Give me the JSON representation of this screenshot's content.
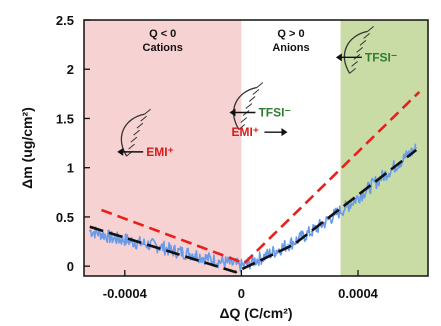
{
  "chart_data": {
    "type": "line",
    "xlabel": "ΔQ (C/cm²)",
    "ylabel": "Δm (ug/cm²)",
    "xlim": [
      -0.00054,
      0.00064
    ],
    "ylim": [
      -0.1,
      2.5
    ],
    "x_ticks": [
      -0.0004,
      0,
      0.0004
    ],
    "x_tick_labels": [
      "-0.0004",
      "0",
      "0.0004"
    ],
    "y_ticks": [
      0,
      0.5,
      1,
      1.5,
      2,
      2.5
    ],
    "y_tick_labels": [
      "0",
      "0.5",
      "1",
      "1.5",
      "2",
      "2.5"
    ],
    "regions": [
      {
        "x0": -0.00054,
        "x1": 0,
        "color": "#f7d2d2",
        "title": "Q < 0",
        "subtitle": "Cations"
      },
      {
        "x0": 0,
        "x1": 0.00034,
        "color": "#ffffff",
        "title": "Q > 0",
        "subtitle": "Anions"
      },
      {
        "x0": 0.00034,
        "x1": 0.00064,
        "color": "#c9dca6",
        "title": "",
        "subtitle": ""
      }
    ],
    "annotations": [
      {
        "text": "EMI⁺",
        "color": "#d91a1a",
        "x": -0.00033,
        "y": 1.12,
        "arrow": "left"
      },
      {
        "text": "TFSI⁻",
        "color": "#2f7d2f",
        "x": 5.5e-05,
        "y": 1.52,
        "arrow": "left"
      },
      {
        "text": "EMI⁺",
        "color": "#d91a1a",
        "x": 5.5e-05,
        "y": 1.32,
        "arrow": "right"
      },
      {
        "text": "TFSI⁻",
        "color": "#2f7d2f",
        "x": 0.00042,
        "y": 2.08,
        "arrow": "left"
      }
    ],
    "series": [
      {
        "style": "noisy-measured",
        "color": "#6a9be8",
        "x": [
          -0.00052,
          -0.00048,
          -0.00044,
          -0.0004,
          -0.00036,
          -0.00032,
          -0.00028,
          -0.00024,
          -0.0002,
          -0.00016,
          -0.00012,
          -8e-05,
          -4e-05,
          0,
          4e-05,
          8e-05,
          0.00012,
          0.00016,
          0.0002,
          0.00024,
          0.00028,
          0.00032,
          0.00036,
          0.0004,
          0.00044,
          0.00048,
          0.00052,
          0.00056,
          0.0006
        ],
        "values": [
          0.36,
          0.33,
          0.28,
          0.27,
          0.24,
          0.22,
          0.2,
          0.16,
          0.14,
          0.12,
          0.08,
          0.05,
          0.03,
          0.0,
          0.05,
          0.1,
          0.16,
          0.22,
          0.28,
          0.35,
          0.43,
          0.52,
          0.6,
          0.7,
          0.8,
          0.9,
          1.0,
          1.1,
          1.2
        ]
      },
      {
        "style": "black-dashed-fit",
        "color": "#111111",
        "x": [
          -0.00052,
          -2e-05,
          0.00018,
          0.0006
        ],
        "values": [
          0.4,
          -0.06,
          0.22,
          1.18
        ]
      },
      {
        "style": "red-dashed-fit",
        "color": "#e8201b",
        "x": [
          -0.00048,
          1e-05,
          0.00061
        ],
        "values": [
          0.57,
          0.03,
          1.77
        ]
      }
    ]
  }
}
